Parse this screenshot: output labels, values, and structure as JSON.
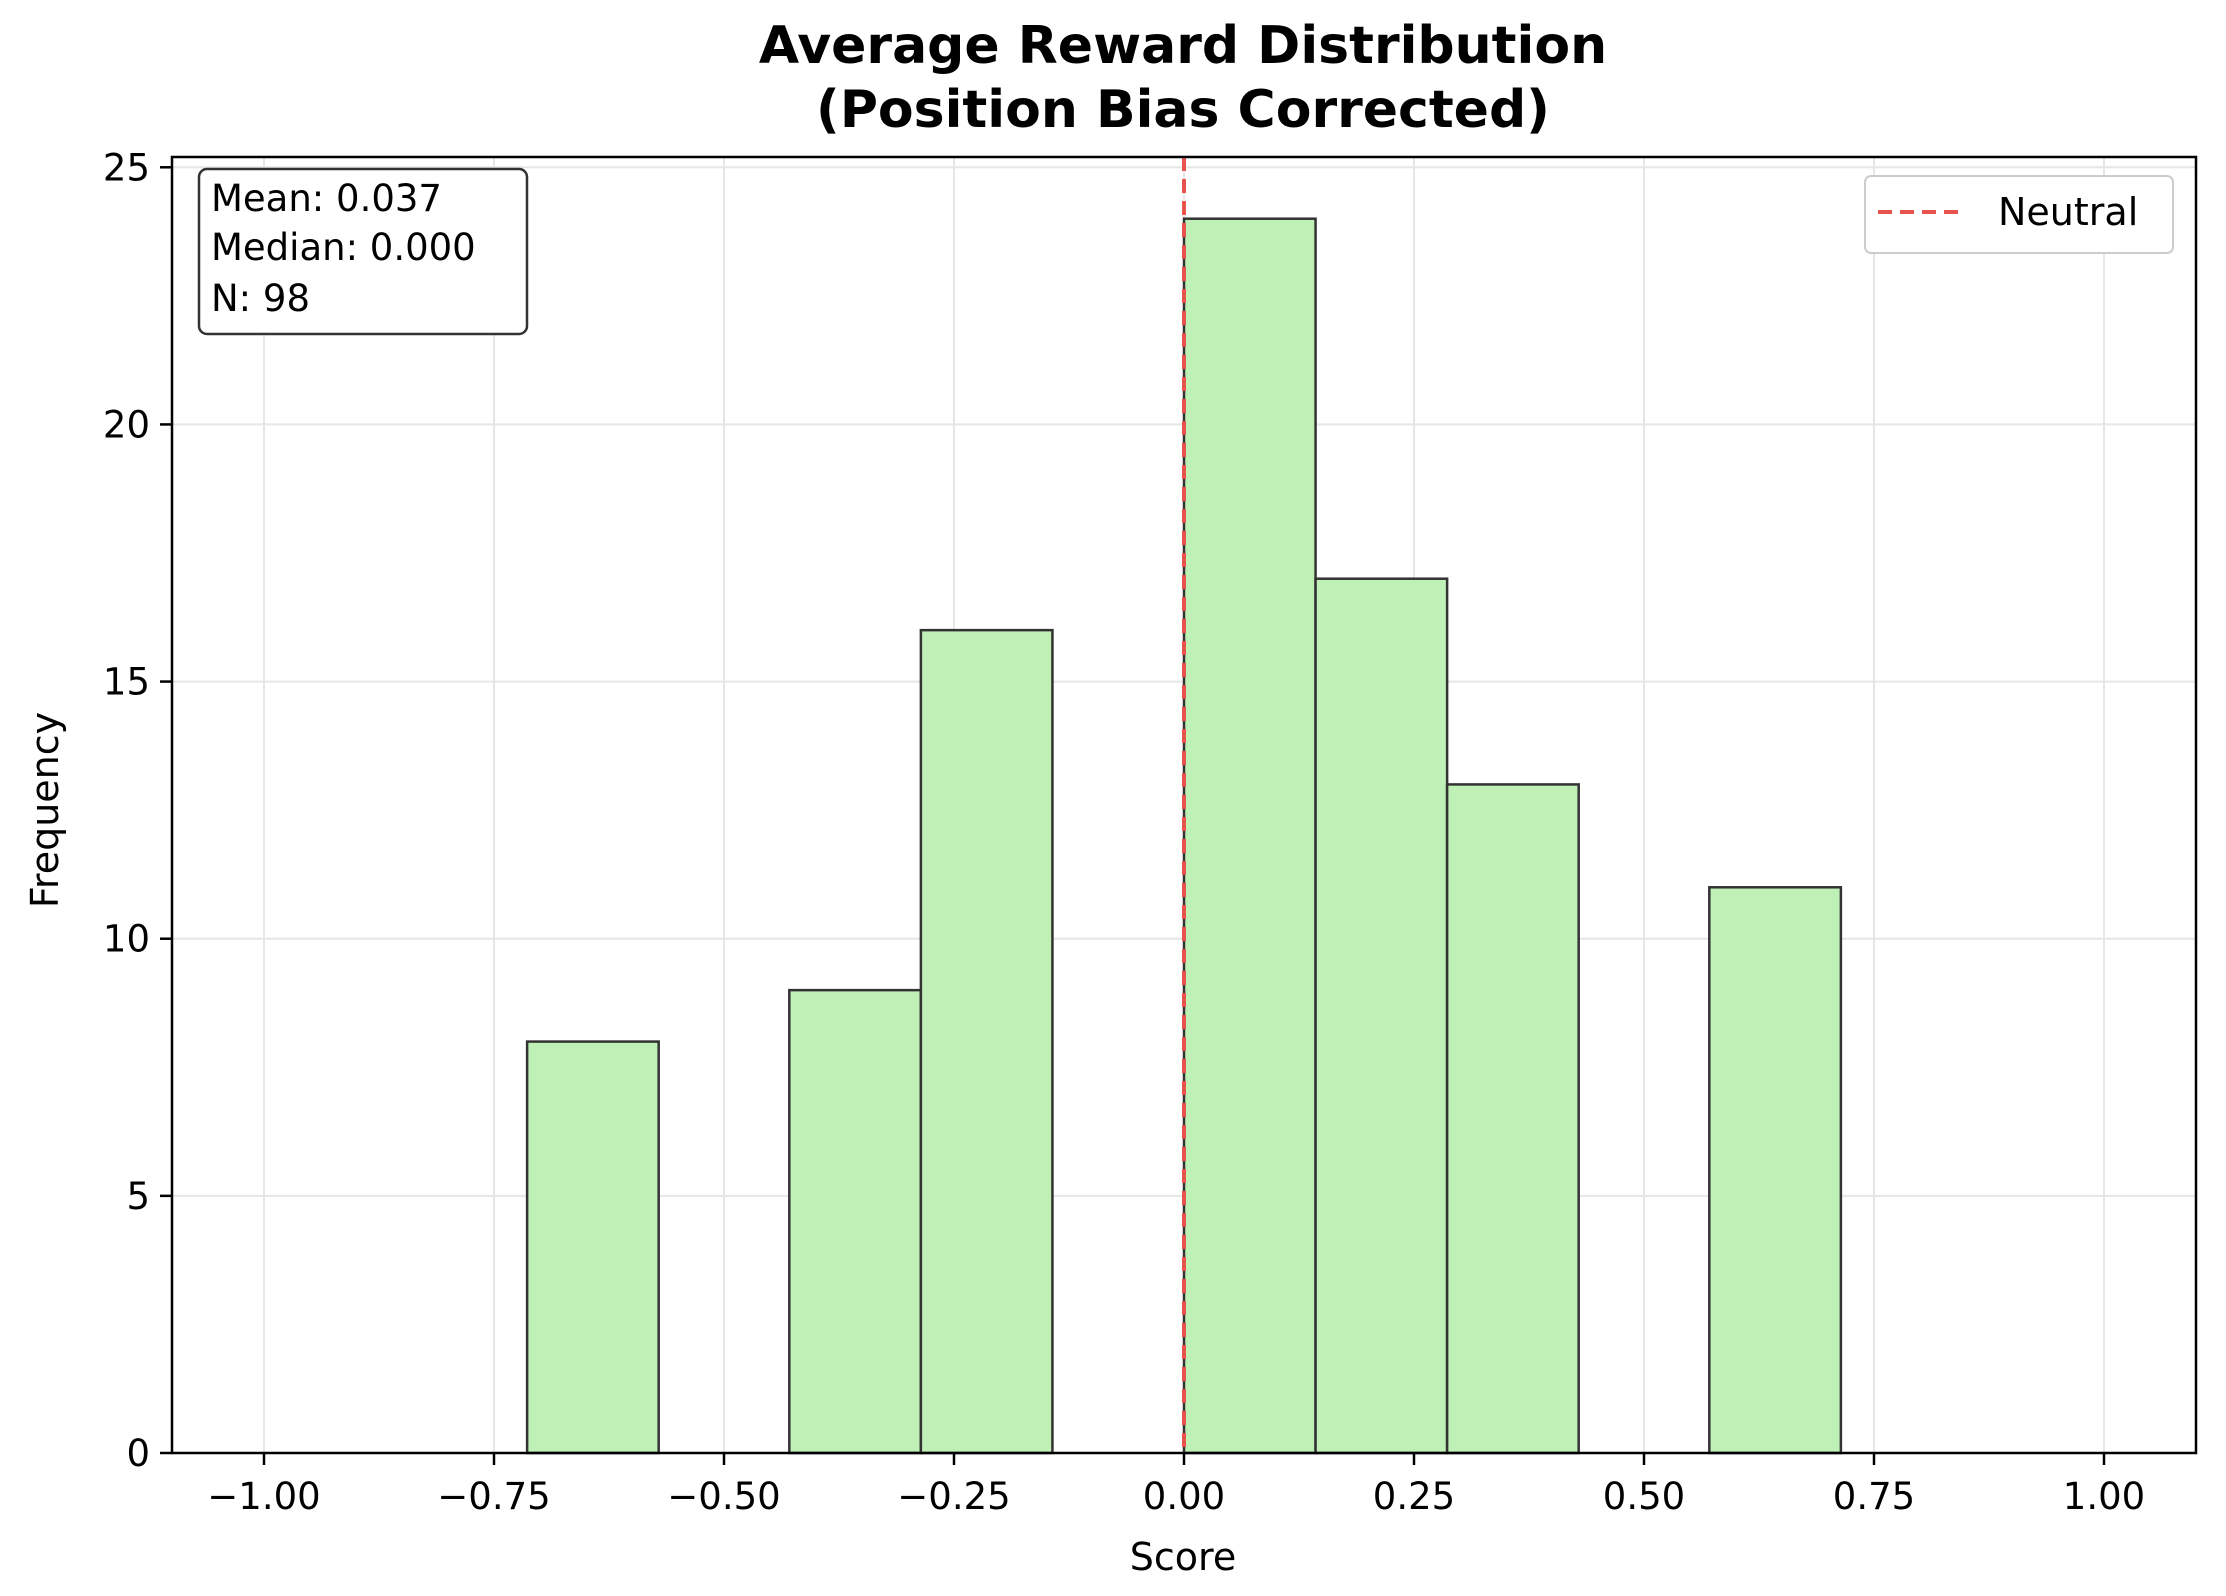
{
  "chart_data": {
    "type": "bar",
    "title": [
      "Average Reward Distribution",
      "(Position Bias Corrected)"
    ],
    "xlabel": "Score",
    "ylabel": "Frequency",
    "xlim": [
      -1.1,
      1.1
    ],
    "ylim": [
      0,
      25.2
    ],
    "xticks": [
      -1.0,
      -0.75,
      -0.5,
      -0.25,
      0.0,
      0.25,
      0.5,
      0.75,
      1.0
    ],
    "xtick_labels": [
      "−1.00",
      "−0.75",
      "−0.50",
      "−0.25",
      "0.00",
      "0.25",
      "0.50",
      "0.75",
      "1.00"
    ],
    "yticks": [
      0,
      5,
      10,
      15,
      20,
      25
    ],
    "ytick_labels": [
      "0",
      "5",
      "10",
      "15",
      "20",
      "25"
    ],
    "grid": true,
    "bins": [
      {
        "x0": -0.714,
        "x1": -0.571,
        "value": 8
      },
      {
        "x0": -0.429,
        "x1": -0.286,
        "value": 9
      },
      {
        "x0": -0.286,
        "x1": -0.143,
        "value": 16
      },
      {
        "x0": 0.0,
        "x1": 0.143,
        "value": 24
      },
      {
        "x0": 0.143,
        "x1": 0.286,
        "value": 17
      },
      {
        "x0": 0.286,
        "x1": 0.429,
        "value": 13
      },
      {
        "x0": 0.571,
        "x1": 0.714,
        "value": 11
      }
    ],
    "bar_color": "#bff0b6",
    "bar_edge_color": "#333333",
    "reference_line": {
      "x": 0.0,
      "label": "Neutral",
      "color": "#e8524f",
      "style": "dashed"
    },
    "legend": {
      "placement": "top-right",
      "entries": [
        "Neutral"
      ]
    },
    "stats_box": {
      "placement": "top-left",
      "lines": [
        "Mean: 0.037",
        "Median: 0.000",
        "N: 98"
      ]
    }
  }
}
